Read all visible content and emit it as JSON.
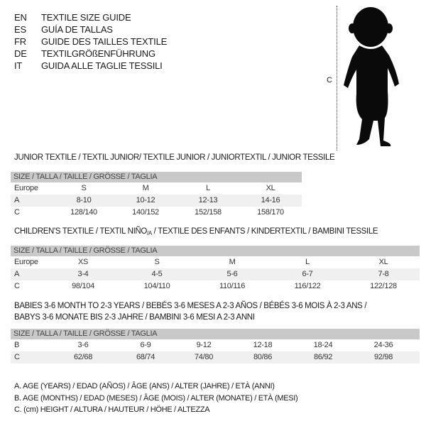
{
  "languages": [
    {
      "code": "EN",
      "text": "TEXTILE SIZE GUIDE"
    },
    {
      "code": "ES",
      "text": "GUÍA DE TALLAS"
    },
    {
      "code": "FR",
      "text": "GUIDE DES TAILLES TEXTILE"
    },
    {
      "code": "DE",
      "text": "TEXTILGRÖßENFÜHRUNG"
    },
    {
      "code": "IT",
      "text": "GUIDA ALLE TAGLIE TESSILI"
    }
  ],
  "figure": {
    "measure_label": "C",
    "icon": "baby-silhouette"
  },
  "size_header": "SIZE / TALLA / TAILLE / GRÖSSE / TAGLIA",
  "junior": {
    "title": "JUNIOR TEXTILE / TEXTIL JUNIOR/ TEXTILE JUNIOR / JUNIORTEXTIL / JUNIOR TESSILE",
    "rows": [
      {
        "label": "Europe",
        "values": [
          "S",
          "M",
          "L",
          "XL"
        ]
      },
      {
        "label": "A",
        "values": [
          "8-10",
          "10-12",
          "12-13",
          "14-16"
        ]
      },
      {
        "label": "C",
        "values": [
          "128/140",
          "140/152",
          "152/158",
          "158/170"
        ]
      }
    ]
  },
  "children": {
    "title_pre": "CHILDREN'S TEXTILE / TEXTIL NIÑO",
    "title_sub": "/A",
    "title_post": " / TEXTILE DES ENFANTS / KINDERTEXTIL / BAMBINI TESSILE",
    "rows": [
      {
        "label": "Europe",
        "values": [
          "XS",
          "S",
          "M",
          "L",
          "XL"
        ]
      },
      {
        "label": "A",
        "values": [
          "3-4",
          "4-5",
          "5-6",
          "6-7",
          "7-8"
        ]
      },
      {
        "label": "C",
        "values": [
          "98/104",
          "104/110",
          "110/116",
          "116/122",
          "122/128"
        ]
      }
    ]
  },
  "babies": {
    "title_line1": "BABIES 3-6 MONTH TO 2-3 YEARS / BEBÉS 3-6 MESES A 2-3 AÑOS / BÉBÉS 3-6 MOIS À 2-3 ANS /",
    "title_line2": "BABYS 3-6 MONATE BIS 2-3 JAHRE / BAMBINI 3-6 MESI A 2-3 ANNI",
    "rows": [
      {
        "label": "B",
        "values": [
          "3-6",
          "6-9",
          "9-12",
          "12-18",
          "18-24",
          "24-36"
        ]
      },
      {
        "label": "C",
        "values": [
          "62/68",
          "68/74",
          "74/80",
          "80/86",
          "86/92",
          "92/98"
        ]
      }
    ]
  },
  "legend": [
    "A. AGE (YEARS) / EDAD (AÑOS) / ÂGE (ANS) / ALTER (JAHRE) / ETÀ (ANNI)",
    "B. AGE (MONTHS) / EDAD (MESES) / ÂGE (MOIS) / ALTER (MONATE) / ETÀ (MESI)",
    "C. (cm) HEIGHT / ALTURA / HAUTEUR / HÖHE / ALTEZZA"
  ]
}
